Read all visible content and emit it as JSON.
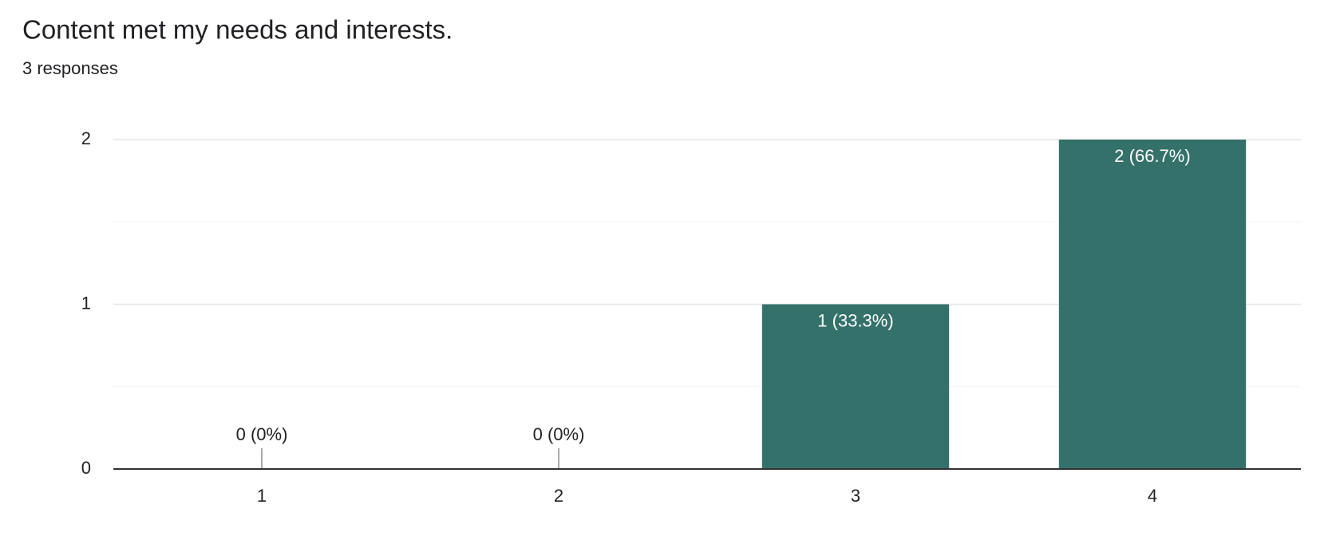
{
  "chart_data": {
    "type": "bar",
    "title": "Content met my needs and interests.",
    "subtitle": "3 responses",
    "categories": [
      "1",
      "2",
      "3",
      "4"
    ],
    "values": [
      0,
      0,
      1,
      2
    ],
    "value_labels": [
      "0 (0%)",
      "0 (0%)",
      "1 (33.3%)",
      "2 (66.7%)"
    ],
    "color": "#34716a",
    "ylim": [
      0,
      2
    ],
    "yticks": [
      0,
      1,
      2
    ],
    "grid": true,
    "minor_grid": true
  }
}
